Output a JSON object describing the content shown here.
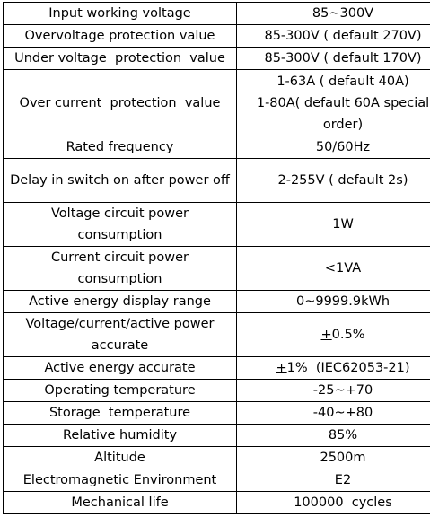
{
  "rows": [
    {
      "param": "Input working voltage",
      "value": "85~300V"
    },
    {
      "param": "Overvoltage protection value",
      "value": "85-300V ( default 270V)"
    },
    {
      "param": "Under voltage  protection  value",
      "value": "85-300V ( default 170V)"
    },
    {
      "param": "Over current  protection  value",
      "value_lines": [
        "1-63A ( default 40A)",
        "1-80A( default 60A special order)"
      ]
    },
    {
      "param": "Rated frequency",
      "value": "50/60Hz"
    },
    {
      "param": "Delay in switch on after power off",
      "value": "2-255V ( default 2s)"
    },
    {
      "param": "Voltage circuit power consumption",
      "value": "1W"
    },
    {
      "param": "Current circuit power consumption",
      "value": "<1VA"
    },
    {
      "param": "Active energy display range",
      "value": "0~9999.9kWh"
    },
    {
      "param": "Voltage/current/active power accurate",
      "value_sign": "+",
      "value_rest": "0.5%"
    },
    {
      "param": "Active energy accurate",
      "value_sign": "+",
      "value_rest": "1%  (IEC62053-21)"
    },
    {
      "param": "Operating temperature",
      "value": "-25~+70"
    },
    {
      "param": "Storage  temperature",
      "value": "-40~+80"
    },
    {
      "param": "Relative humidity",
      "value": "85%"
    },
    {
      "param": "Altitude",
      "value": "2500m"
    },
    {
      "param": "Electromagnetic Environment",
      "value": "E2"
    },
    {
      "param": "Mechanical life",
      "value": "100000  cycles"
    }
  ]
}
